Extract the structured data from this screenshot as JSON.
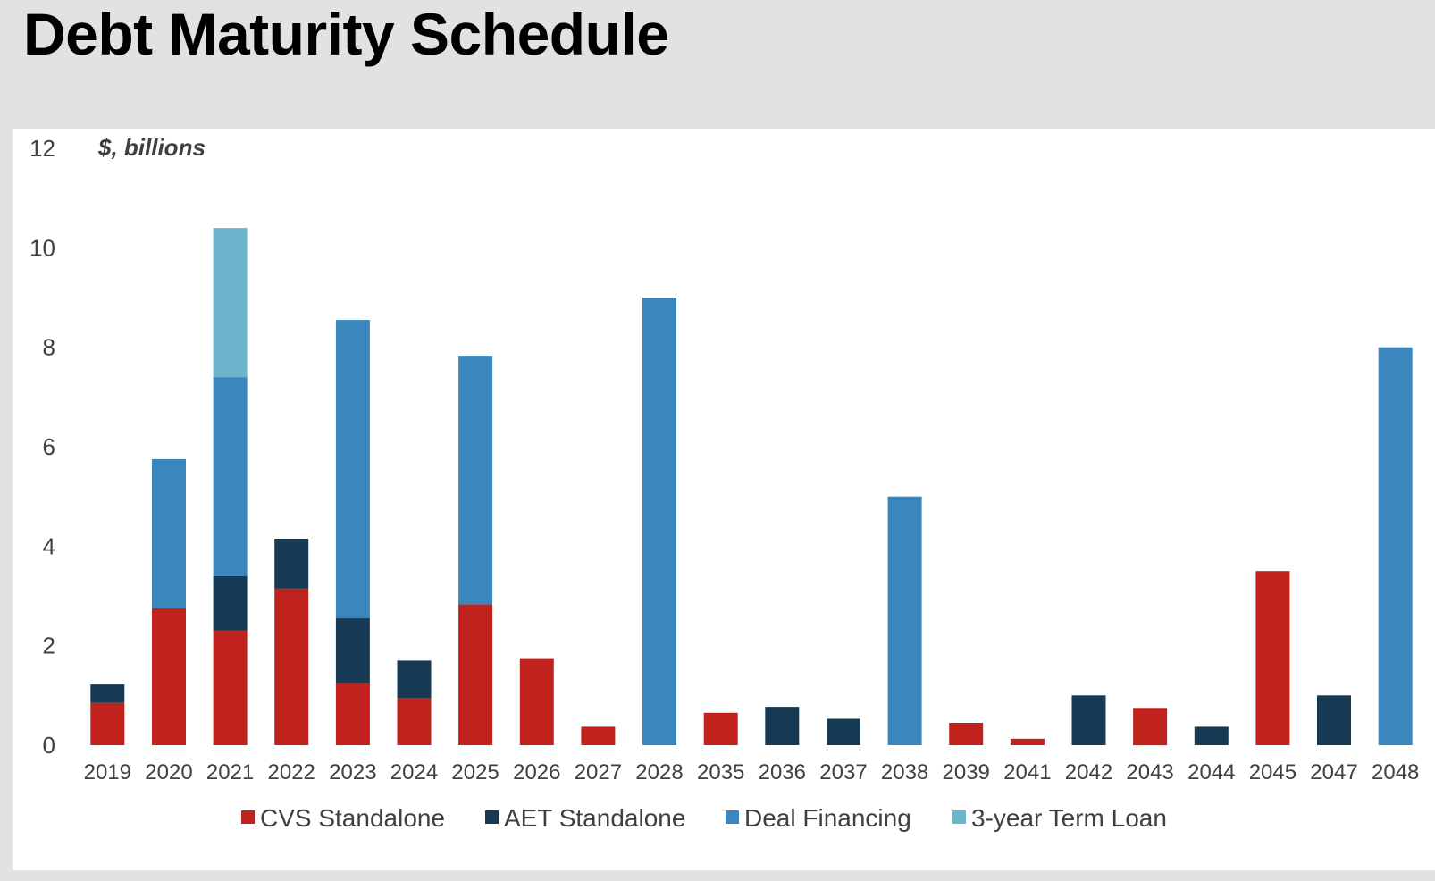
{
  "page": {
    "title": "Debt Maturity Schedule"
  },
  "chart_data": {
    "type": "bar",
    "stacked": true,
    "unit_label": "$, billions",
    "ylim": [
      0,
      12
    ],
    "yticks": [
      0,
      2,
      4,
      6,
      8,
      10,
      12
    ],
    "grid": false,
    "legend_position": "bottom",
    "categories": [
      "2019",
      "2020",
      "2021",
      "2022",
      "2023",
      "2024",
      "2025",
      "2026",
      "2027",
      "2028",
      "2035",
      "2036",
      "2037",
      "2038",
      "2039",
      "2041",
      "2042",
      "2043",
      "2044",
      "2045",
      "2047",
      "2048"
    ],
    "series": [
      {
        "name": "CVS Standalone",
        "color": "#c0221d",
        "values": [
          0.85,
          2.75,
          2.3,
          3.15,
          1.25,
          0.95,
          2.83,
          1.75,
          0.37,
          0,
          0.65,
          0,
          0,
          0,
          0.45,
          0.13,
          0,
          0.75,
          0,
          3.5,
          0,
          0
        ]
      },
      {
        "name": "AET Standalone",
        "color": "#173a54",
        "values": [
          0.37,
          0,
          1.1,
          1.0,
          1.3,
          0.75,
          0,
          0,
          0,
          0,
          0,
          0.77,
          0.53,
          0,
          0,
          0,
          1.0,
          0,
          0.37,
          0,
          1.0,
          0
        ]
      },
      {
        "name": "Deal Financing",
        "color": "#3a87bd",
        "values": [
          0,
          3.0,
          4.0,
          0,
          6.0,
          0,
          5.0,
          0,
          0,
          9.0,
          0,
          0,
          0,
          5.0,
          0,
          0,
          0,
          0,
          0,
          0,
          0,
          8.0
        ]
      },
      {
        "name": "3-year Term Loan",
        "color": "#6cb5cd",
        "values": [
          0,
          0,
          3.0,
          0,
          0,
          0,
          0,
          0,
          0,
          0,
          0,
          0,
          0,
          0,
          0,
          0,
          0,
          0,
          0,
          0,
          0,
          0
        ]
      }
    ]
  }
}
